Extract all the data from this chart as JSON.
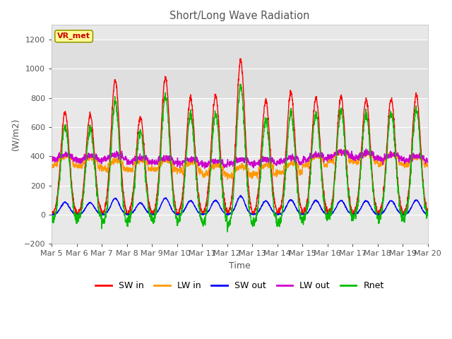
{
  "title": "Short/Long Wave Radiation",
  "xlabel": "Time",
  "ylabel": "(W/m2)",
  "ylim": [
    -200,
    1300
  ],
  "yticks": [
    -200,
    0,
    200,
    400,
    600,
    800,
    1000,
    1200
  ],
  "xlim": [
    0,
    15
  ],
  "x_tick_labels": [
    "Mar 5",
    "Mar 6",
    "Mar 7",
    "Mar 8",
    "Mar 9",
    "Mar 10",
    "Mar 11",
    "Mar 12",
    "Mar 13",
    "Mar 14",
    "Mar 15",
    "Mar 16",
    "Mar 17",
    "Mar 18",
    "Mar 19",
    "Mar 20"
  ],
  "background_color": "#ffffff",
  "plot_bg_color": "#e8e8e8",
  "vr_met_box_color": "#ffff99",
  "vr_met_text_color": "#cc0000",
  "vr_met_edge_color": "#999900",
  "colors": {
    "SW_in": "#ff0000",
    "LW_in": "#ff9900",
    "SW_out": "#0000ff",
    "LW_out": "#cc00cc",
    "Rnet": "#00bb00"
  },
  "legend_labels": [
    "SW in",
    "LW in",
    "SW out",
    "LW out",
    "Rnet"
  ],
  "linewidth": 1.0,
  "peak_heights": [
    700,
    680,
    920,
    670,
    940,
    800,
    820,
    1060,
    780,
    840,
    800,
    810,
    790,
    790,
    820
  ],
  "lw_in_base": [
    340,
    330,
    310,
    310,
    310,
    300,
    280,
    270,
    280,
    290,
    340,
    370,
    360,
    350,
    340
  ],
  "lw_out_base": [
    380,
    370,
    380,
    360,
    360,
    350,
    340,
    350,
    350,
    360,
    380,
    400,
    390,
    380,
    370
  ]
}
